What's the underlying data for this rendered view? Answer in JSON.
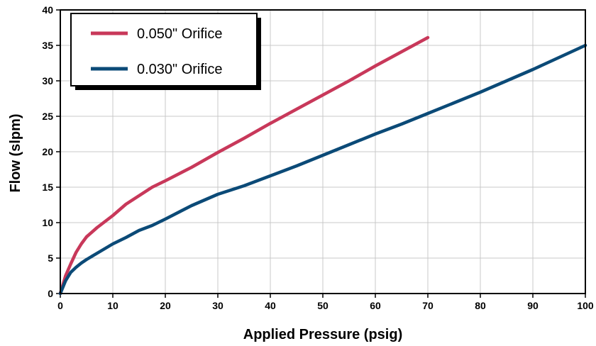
{
  "chart_data": {
    "type": "line",
    "xlabel": "Applied Pressure (psig)",
    "ylabel": "Flow  (slpm)",
    "xlim": [
      0,
      100
    ],
    "ylim": [
      0,
      40
    ],
    "x_ticks": [
      "0",
      "10",
      "20",
      "30",
      "40",
      "50",
      "60",
      "70",
      "80",
      "90",
      "100"
    ],
    "y_ticks": [
      "0",
      "5",
      "10",
      "15",
      "20",
      "25",
      "30",
      "35",
      "40"
    ],
    "grid": true,
    "legend_position": "top-left",
    "series": [
      {
        "name": "0.050\" Orifice",
        "color": "#c8385a",
        "points": [
          [
            0,
            0
          ],
          [
            1,
            2.5
          ],
          [
            2,
            4.2
          ],
          [
            3,
            5.8
          ],
          [
            4,
            7.0
          ],
          [
            5,
            8.0
          ],
          [
            7,
            9.3
          ],
          [
            10,
            11.0
          ],
          [
            12.5,
            12.6
          ],
          [
            15,
            13.8
          ],
          [
            17.5,
            15.0
          ],
          [
            20,
            15.9
          ],
          [
            25,
            17.8
          ],
          [
            30,
            19.9
          ],
          [
            35,
            21.9
          ],
          [
            40,
            24.0
          ],
          [
            45,
            26.0
          ],
          [
            50,
            28.0
          ],
          [
            55,
            30.0
          ],
          [
            60,
            32.1
          ],
          [
            65,
            34.1
          ],
          [
            70,
            36.1
          ]
        ]
      },
      {
        "name": "0.030\" Orifice",
        "color": "#0b4a77",
        "points": [
          [
            0,
            0
          ],
          [
            1,
            1.8
          ],
          [
            2,
            3.0
          ],
          [
            3,
            3.7
          ],
          [
            4,
            4.3
          ],
          [
            5,
            4.8
          ],
          [
            7.5,
            5.9
          ],
          [
            10,
            7.0
          ],
          [
            12.5,
            7.9
          ],
          [
            15,
            8.9
          ],
          [
            17.5,
            9.6
          ],
          [
            20,
            10.5
          ],
          [
            25,
            12.4
          ],
          [
            30,
            14.0
          ],
          [
            35,
            15.2
          ],
          [
            40,
            16.6
          ],
          [
            45,
            18.0
          ],
          [
            50,
            19.5
          ],
          [
            55,
            21.0
          ],
          [
            60,
            22.5
          ],
          [
            65,
            23.9
          ],
          [
            70,
            25.4
          ],
          [
            75,
            26.9
          ],
          [
            80,
            28.4
          ],
          [
            85,
            30.0
          ],
          [
            90,
            31.6
          ],
          [
            95,
            33.3
          ],
          [
            100,
            35.0
          ]
        ]
      }
    ]
  }
}
